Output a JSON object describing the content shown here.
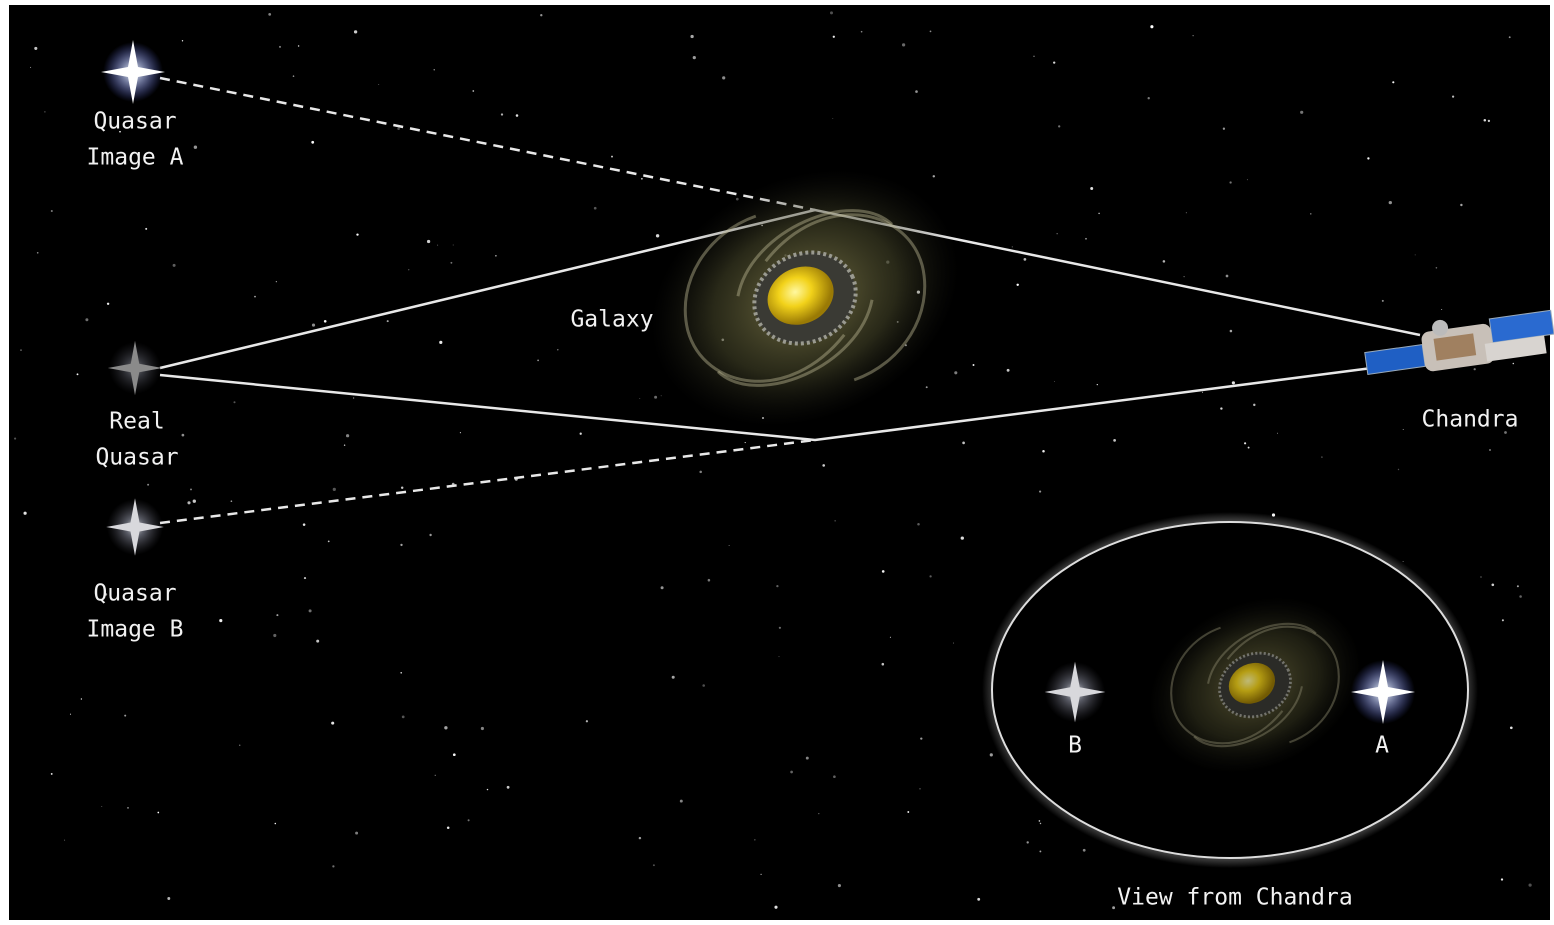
{
  "labels": {
    "quasar_a": [
      "Quasar",
      "Image A"
    ],
    "real_quasar": [
      "Real",
      "Quasar"
    ],
    "quasar_b": [
      "Quasar",
      "Image B"
    ],
    "galaxy": "Galaxy",
    "chandra": "Chandra"
  },
  "inset": {
    "label_b": "B",
    "label_a": "A",
    "caption": "View from Chandra"
  }
}
